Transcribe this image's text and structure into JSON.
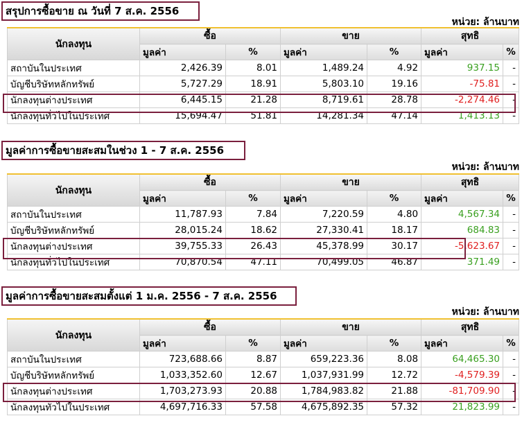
{
  "sections": [
    {
      "title": "สรุปการซื้อขาย ณ วันที่ 7 ส.ค. 2556",
      "unit": "หน่วย: ล้านบาท",
      "headers": {
        "investor": "นักลงทุน",
        "buy": "ซื้อ",
        "sell": "ขาย",
        "net": "สุทธิ",
        "value": "มูลค่า",
        "pct": "%"
      },
      "rows": [
        {
          "name": "สถาบันในประเทศ",
          "buy_value": "2,426.39",
          "buy_pct": "8.01",
          "sell_value": "1,489.24",
          "sell_pct": "4.92",
          "net_value": "937.15",
          "net_pct": "-"
        },
        {
          "name": "บัญชีบริษัทหลักทรัพย์",
          "buy_value": "5,727.29",
          "buy_pct": "18.91",
          "sell_value": "5,803.10",
          "sell_pct": "19.16",
          "net_value": "-75.81",
          "net_pct": "-"
        },
        {
          "name": "นักลงทุนต่างประเทศ",
          "buy_value": "6,445.15",
          "buy_pct": "21.28",
          "sell_value": "8,719.61",
          "sell_pct": "28.78",
          "net_value": "-2,274.46",
          "net_pct": "-"
        },
        {
          "name": "นักลงทุนทั่วไปในประเทศ",
          "buy_value": "15,694.47",
          "buy_pct": "51.81",
          "sell_value": "14,281.34",
          "sell_pct": "47.14",
          "net_value": "1,413.13",
          "net_pct": "-"
        }
      ]
    },
    {
      "title": "มูลค่าการซื้อขายสะสมในช่วง 1 - 7 ส.ค. 2556",
      "unit": "หน่วย: ล้านบาท",
      "headers": {
        "investor": "นักลงทุน",
        "buy": "ซื้อ",
        "sell": "ขาย",
        "net": "สุทธิ",
        "value": "มูลค่า",
        "pct": "%"
      },
      "rows": [
        {
          "name": "สถาบันในประเทศ",
          "buy_value": "11,787.93",
          "buy_pct": "7.84",
          "sell_value": "7,220.59",
          "sell_pct": "4.80",
          "net_value": "4,567.34",
          "net_pct": "-"
        },
        {
          "name": "บัญชีบริษัทหลักทรัพย์",
          "buy_value": "28,015.24",
          "buy_pct": "18.62",
          "sell_value": "27,330.41",
          "sell_pct": "18.17",
          "net_value": "684.83",
          "net_pct": "-"
        },
        {
          "name": "นักลงทุนต่างประเทศ",
          "buy_value": "39,755.33",
          "buy_pct": "26.43",
          "sell_value": "45,378.99",
          "sell_pct": "30.17",
          "net_value": "-5,623.67",
          "net_pct": "-"
        },
        {
          "name": "นักลงทุนทั่วไปในประเทศ",
          "buy_value": "70,870.54",
          "buy_pct": "47.11",
          "sell_value": "70,499.05",
          "sell_pct": "46.87",
          "net_value": "371.49",
          "net_pct": "-"
        }
      ]
    },
    {
      "title": "มูลค่าการซื้อขายสะสมตั้งแต่ 1 ม.ค. 2556 - 7 ส.ค. 2556",
      "unit": "หน่วย: ล้านบาท",
      "headers": {
        "investor": "นักลงทุน",
        "buy": "ซื้อ",
        "sell": "ขาย",
        "net": "สุทธิ",
        "value": "มูลค่า",
        "pct": "%"
      },
      "rows": [
        {
          "name": "สถาบันในประเทศ",
          "buy_value": "723,688.66",
          "buy_pct": "8.87",
          "sell_value": "659,223.36",
          "sell_pct": "8.08",
          "net_value": "64,465.30",
          "net_pct": "-"
        },
        {
          "name": "บัญชีบริษัทหลักทรัพย์",
          "buy_value": "1,033,352.60",
          "buy_pct": "12.67",
          "sell_value": "1,037,931.99",
          "sell_pct": "12.72",
          "net_value": "-4,579.39",
          "net_pct": "-"
        },
        {
          "name": "นักลงทุนต่างประเทศ",
          "buy_value": "1,703,273.93",
          "buy_pct": "20.88",
          "sell_value": "1,784,983.82",
          "sell_pct": "21.88",
          "net_value": "-81,709.90",
          "net_pct": "-"
        },
        {
          "name": "นักลงทุนทั่วไปในประเทศ",
          "buy_value": "4,697,716.33",
          "buy_pct": "57.58",
          "sell_value": "4,675,892.35",
          "sell_pct": "57.32",
          "net_value": "21,823.99",
          "net_pct": "-"
        }
      ]
    }
  ],
  "colors": {
    "positive": "#3aa020",
    "negative": "#e02020",
    "highlight_border": "#7a1f3d",
    "table_top_border": "#f0c030"
  }
}
